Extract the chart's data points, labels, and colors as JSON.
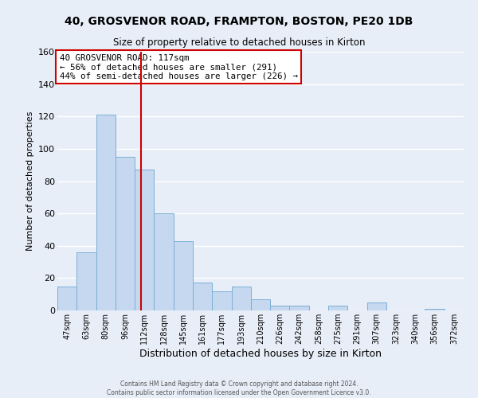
{
  "title_line1": "40, GROSVENOR ROAD, FRAMPTON, BOSTON, PE20 1DB",
  "title_line2": "Size of property relative to detached houses in Kirton",
  "xlabel": "Distribution of detached houses by size in Kirton",
  "ylabel": "Number of detached properties",
  "categories": [
    "47sqm",
    "63sqm",
    "80sqm",
    "96sqm",
    "112sqm",
    "128sqm",
    "145sqm",
    "161sqm",
    "177sqm",
    "193sqm",
    "210sqm",
    "226sqm",
    "242sqm",
    "258sqm",
    "275sqm",
    "291sqm",
    "307sqm",
    "323sqm",
    "340sqm",
    "356sqm",
    "372sqm"
  ],
  "values": [
    15,
    36,
    121,
    95,
    87,
    60,
    43,
    17,
    12,
    15,
    7,
    3,
    3,
    0,
    3,
    0,
    5,
    0,
    0,
    1,
    0
  ],
  "bar_color": "#c5d8f0",
  "bar_edge_color": "#7bafd4",
  "ylim": [
    0,
    160
  ],
  "yticks": [
    0,
    20,
    40,
    60,
    80,
    100,
    120,
    140,
    160
  ],
  "vline_color": "#cc0000",
  "annotation_title": "40 GROSVENOR ROAD: 117sqm",
  "annotation_line1": "← 56% of detached houses are smaller (291)",
  "annotation_line2": "44% of semi-detached houses are larger (226) →",
  "annotation_box_color": "#ffffff",
  "annotation_box_edge_color": "#cc0000",
  "footer_line1": "Contains HM Land Registry data © Crown copyright and database right 2024.",
  "footer_line2": "Contains public sector information licensed under the Open Government Licence v3.0.",
  "background_color": "#e8eef8"
}
